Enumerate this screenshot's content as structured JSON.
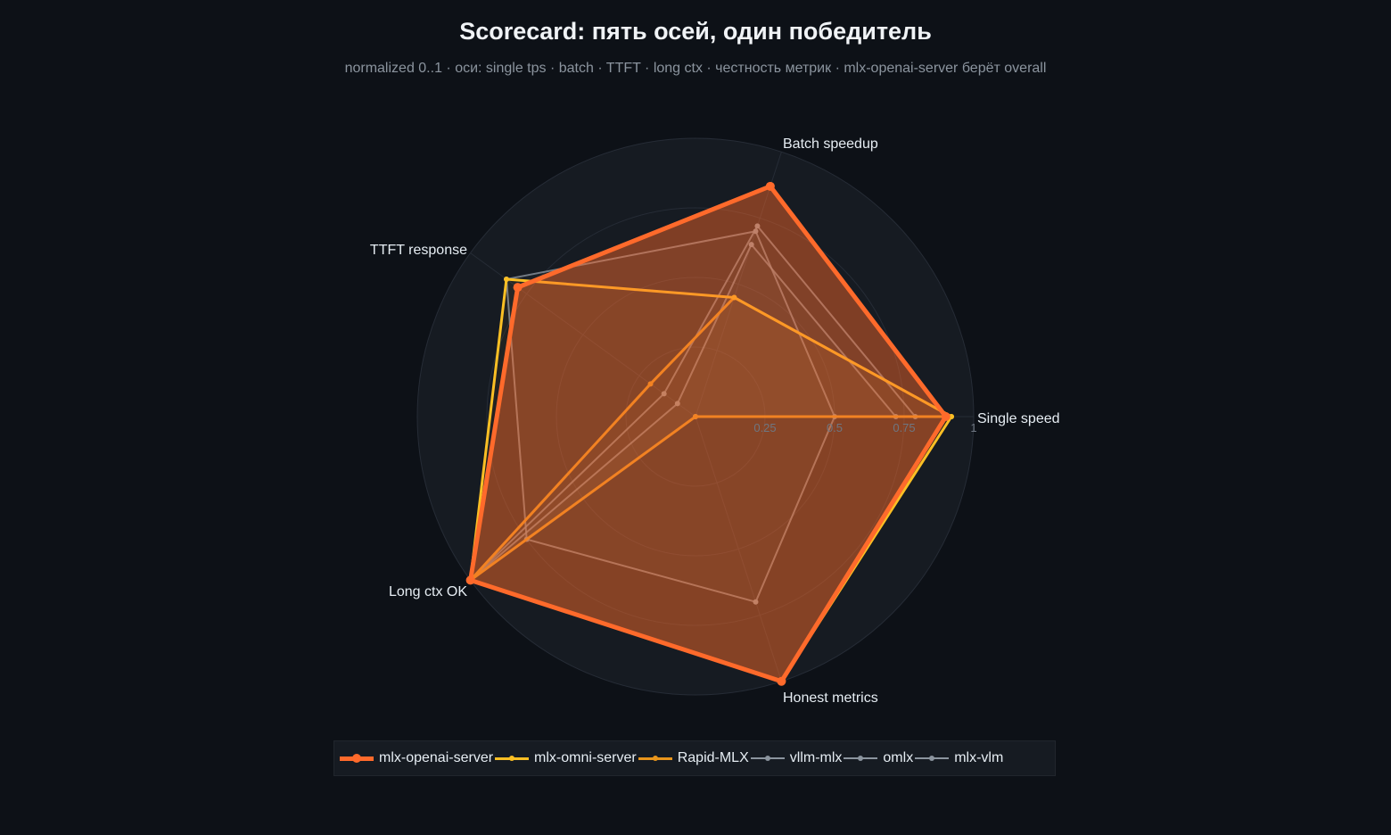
{
  "chart_data": {
    "type": "radar",
    "title": "Scorecard: пять осей, один победитель",
    "subtitle": "normalized 0..1 · оси: single tps · batch · TTFT · long ctx · честность метрик  ·  mlx-openai-server берёт overall",
    "axes": [
      "Single speed",
      "Batch speedup",
      "TTFT response",
      "Long ctx OK",
      "Honest metrics"
    ],
    "radial_range": [
      0,
      1
    ],
    "radial_ticks": [
      "0.25",
      "0.5",
      "0.75",
      "1"
    ],
    "legend_position": "bottom",
    "series": [
      {
        "name": "mlx-openai-server",
        "color": "#ff6a2b",
        "values": [
          0.9,
          0.87,
          0.79,
          1.0,
          1.0
        ]
      },
      {
        "name": "mlx-omni-server",
        "color": "#fbbf24",
        "values": [
          0.92,
          0.45,
          0.84,
          1.0,
          1.0
        ]
      },
      {
        "name": "Rapid-MLX",
        "color": "#e8951c",
        "values": [
          0.92,
          0.45,
          0.2,
          1.0,
          0.0
        ]
      },
      {
        "name": "vllm-mlx",
        "color": "#8b949e",
        "values": [
          0.79,
          0.72,
          0.14,
          1.0,
          0.0
        ]
      },
      {
        "name": "omlx",
        "color": "#8b949e",
        "values": [
          0.72,
          0.65,
          0.08,
          1.0,
          0.0
        ]
      },
      {
        "name": "mlx-vlm",
        "color": "#8b949e",
        "values": [
          0.5,
          0.7,
          0.84,
          0.75,
          0.7
        ]
      }
    ]
  }
}
